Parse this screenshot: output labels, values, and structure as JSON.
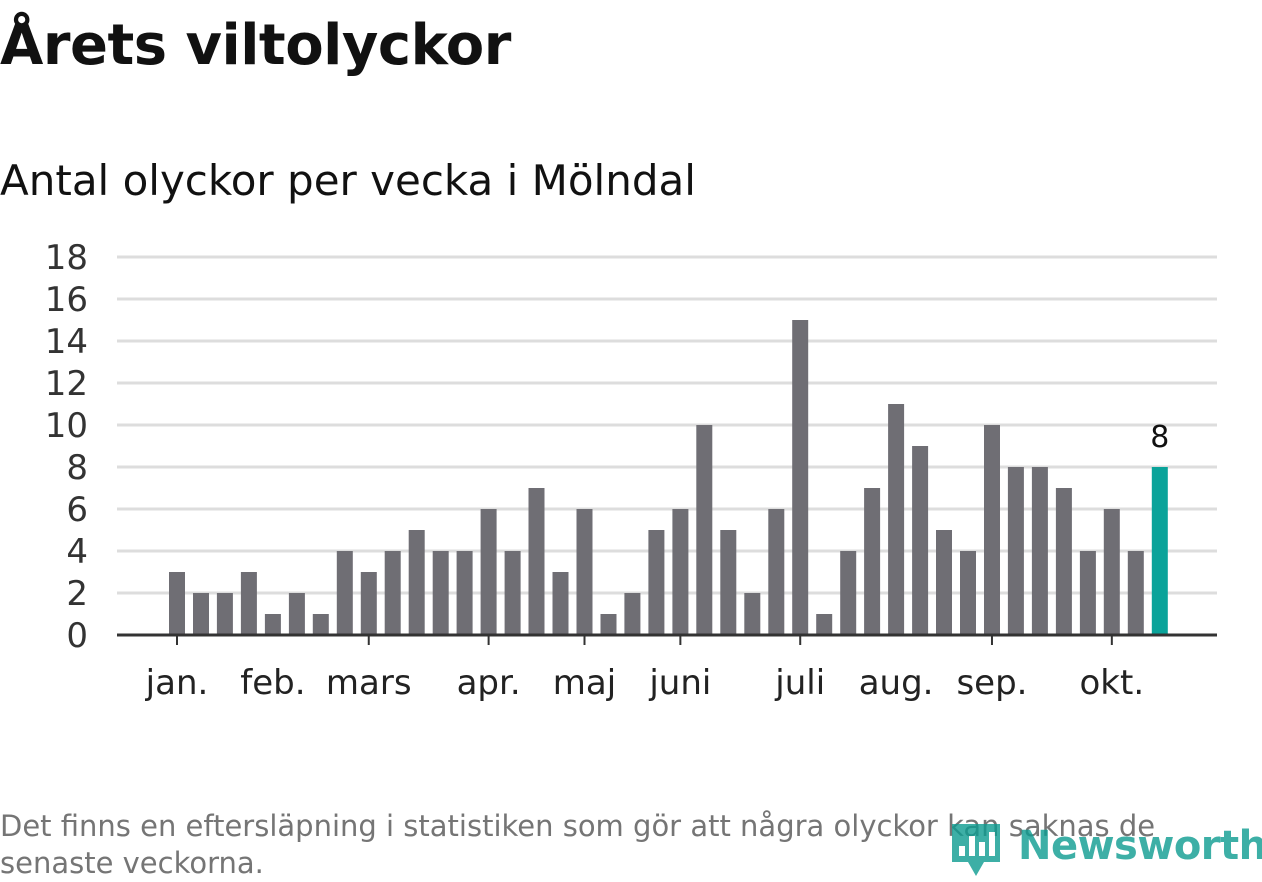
{
  "title": "Årets viltolyckor",
  "subtitle": "Antal olyckor per vecka i Mölndal",
  "footnote": "Det finns en eftersläpning i statistiken som gör att några olyckor kan saknas de senaste veckorna.",
  "brand": {
    "name": "Newsworthy",
    "color": "#0d9c91"
  },
  "colors": {
    "bar": "#6f6e74",
    "highlight": "#0aa39a",
    "grid": "#dddddd",
    "axis": "#333333"
  },
  "chart_data": {
    "type": "bar",
    "title": "Årets viltolyckor",
    "subtitle": "Antal olyckor per vecka i Mölndal",
    "xlabel": "",
    "ylabel": "",
    "ylim": [
      0,
      18
    ],
    "yticks": [
      "0",
      "2",
      "4",
      "6",
      "8",
      "10",
      "12",
      "14",
      "16",
      "18"
    ],
    "grid": true,
    "weeks": [
      1,
      2,
      3,
      4,
      5,
      6,
      7,
      8,
      9,
      10,
      11,
      12,
      13,
      14,
      15,
      16,
      17,
      18,
      19,
      20,
      21,
      22,
      23,
      24,
      25,
      26,
      27,
      28,
      29,
      30,
      31,
      32,
      33,
      34,
      35,
      36,
      37,
      38,
      39,
      40,
      41,
      42
    ],
    "values": [
      3,
      2,
      2,
      3,
      1,
      2,
      1,
      4,
      3,
      4,
      5,
      4,
      4,
      6,
      4,
      7,
      3,
      6,
      1,
      2,
      5,
      6,
      10,
      5,
      2,
      6,
      15,
      1,
      4,
      7,
      11,
      9,
      5,
      4,
      10,
      8,
      8,
      7,
      4,
      6,
      4,
      8
    ],
    "highlight_index": 41,
    "highlight_label": "8",
    "month_labels": [
      {
        "label": "jan.",
        "week": 1
      },
      {
        "label": "feb.",
        "week": 5
      },
      {
        "label": "mars",
        "week": 9
      },
      {
        "label": "apr.",
        "week": 14
      },
      {
        "label": "maj",
        "week": 18
      },
      {
        "label": "juni",
        "week": 22
      },
      {
        "label": "juli",
        "week": 27
      },
      {
        "label": "aug.",
        "week": 31
      },
      {
        "label": "sep.",
        "week": 35
      },
      {
        "label": "okt.",
        "week": 40
      }
    ],
    "month_ticks_week": [
      1,
      9,
      14,
      18,
      22,
      27,
      35,
      40
    ]
  }
}
